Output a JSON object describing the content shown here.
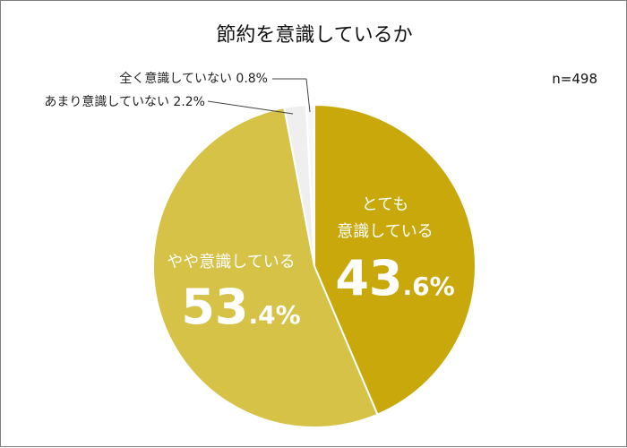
{
  "chart_data": {
    "type": "pie",
    "title": "節約を意識しているか",
    "sample_size": "n=498",
    "slices": [
      {
        "label_lines": [
          "とても",
          "意識している"
        ],
        "value": 43.6,
        "value_int": "43",
        "value_dec": ".6%",
        "color": "#c9a80c"
      },
      {
        "label_lines": [
          "やや意識している"
        ],
        "value": 53.4,
        "value_int": "53",
        "value_dec": ".4%",
        "color": "#d5c246"
      },
      {
        "label_lines": [
          "あまり意識していない 2.2%"
        ],
        "value": 2.2,
        "color": "#efefef"
      },
      {
        "label_lines": [
          "全く意識していない 0.8%"
        ],
        "value": 0.8,
        "color": "#f7f7f7"
      }
    ]
  }
}
